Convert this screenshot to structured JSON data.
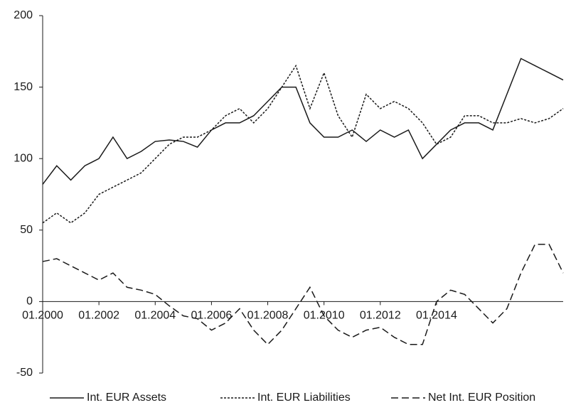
{
  "chart_data": {
    "type": "line",
    "categories": [
      "01.2000",
      null,
      null,
      null,
      "01.2002",
      null,
      null,
      null,
      "01.2004",
      null,
      null,
      null,
      "01.2006",
      null,
      null,
      null,
      "01.2008",
      null,
      null,
      null,
      "01.2010",
      null,
      null,
      null,
      "01.2012",
      null,
      null,
      null,
      "01.2014",
      null,
      null,
      null,
      null,
      null,
      null,
      null,
      null,
      null
    ],
    "series": [
      {
        "name": "Int. EUR Assets",
        "color": "#1a1a1a",
        "style": "solid",
        "values": [
          82,
          95,
          85,
          95,
          100,
          115,
          100,
          105,
          112,
          113,
          112,
          108,
          120,
          125,
          125,
          130,
          140,
          150,
          150,
          125,
          115,
          115,
          120,
          112,
          120,
          115,
          120,
          100,
          110,
          120,
          125,
          125,
          120,
          145,
          170,
          165,
          160,
          155
        ]
      },
      {
        "name": "Int. EUR Liabilities",
        "color": "#1a1a1a",
        "style": "dotted",
        "values": [
          55,
          62,
          55,
          62,
          75,
          80,
          85,
          90,
          100,
          110,
          115,
          115,
          120,
          130,
          135,
          125,
          135,
          150,
          165,
          135,
          160,
          130,
          115,
          145,
          135,
          140,
          135,
          125,
          110,
          115,
          130,
          130,
          125,
          125,
          128,
          125,
          128,
          135
        ]
      },
      {
        "name": "Net Int. EUR Position",
        "color": "#1a1a1a",
        "style": "dashed",
        "values": [
          28,
          30,
          25,
          20,
          15,
          20,
          10,
          8,
          5,
          -3,
          -10,
          -12,
          -20,
          -15,
          -5,
          -20,
          -30,
          -20,
          -5,
          10,
          -10,
          -20,
          -25,
          -20,
          -18,
          -25,
          -30,
          -30,
          0,
          8,
          5,
          -5,
          -15,
          -5,
          20,
          40,
          40,
          20
        ]
      }
    ],
    "ylim": [
      -50,
      200
    ],
    "yticks": [
      -50,
      0,
      50,
      100,
      150,
      200
    ]
  }
}
